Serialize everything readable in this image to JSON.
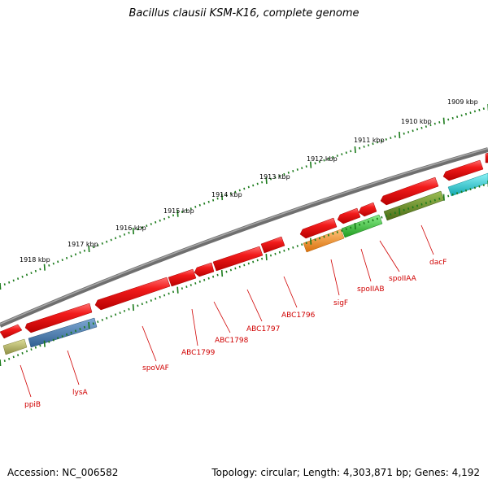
{
  "title": "Bacillus clausii KSM-K16, complete genome",
  "footer": {
    "accession": "Accession: NC_006582",
    "summary": "Topology: circular; Length: 4,303,871 bp; Genes: 4,192"
  },
  "scale_labels": [
    "1909 kbp",
    "1910 kbp",
    "1911 kbp",
    "1912 kbp",
    "1913 kbp",
    "1914 kbp",
    "1915 kbp",
    "1916 kbp",
    "1917 kbp",
    "1918 kbp"
  ],
  "gene_labels": [
    "dacF",
    "spoIIAA",
    "spoIIAB",
    "sigF",
    "ABC1796",
    "ABC1797",
    "ABC1798",
    "ABC1799",
    "spoVAF",
    "lysA",
    "ppiB"
  ],
  "colors": {
    "cds": "#e8111a",
    "backbone": "#7a7a7a",
    "tick": "#1a7a1a",
    "label": "#d00000",
    "feature_olive": "#b5b565",
    "feature_blue": "#4a7fb5",
    "feature_orange": "#f5901e",
    "feature_green": "#3ec23e",
    "feature_darkolive": "#6b8e23",
    "feature_cyan": "#1ec8d2"
  }
}
